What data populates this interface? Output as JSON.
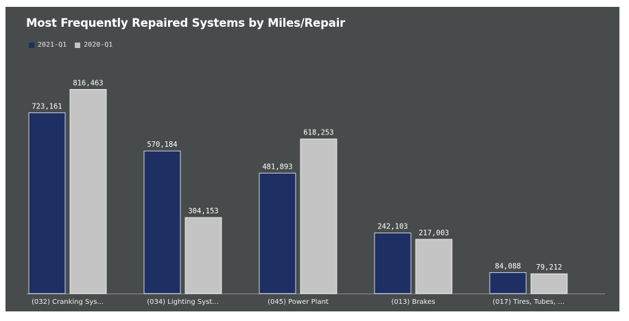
{
  "chart_data": {
    "type": "bar",
    "title": "Most Frequently Repaired Systems by Miles/Repair",
    "categories": [
      "(032) Cranking Sys...",
      "(034) Lighting Syst...",
      "(045) Power Plant",
      "(013) Brakes",
      "(017) Tires, Tubes, ..."
    ],
    "series": [
      {
        "name": "2021-Q1",
        "color": "#1d2f63",
        "values": [
          723161,
          570184,
          481893,
          242103,
          84088
        ],
        "labels": [
          "723,161",
          "570,184",
          "481,893",
          "242,103",
          "84,088"
        ]
      },
      {
        "name": "2020-Q1",
        "color": "#c4c4c4",
        "values": [
          816463,
          304153,
          618253,
          217003,
          79212
        ],
        "labels": [
          "816,463",
          "304,153",
          "618,253",
          "217,003",
          "79,212"
        ]
      }
    ],
    "ylim": [
      0,
      960000
    ],
    "grid": false,
    "legend_position": "top-left"
  }
}
